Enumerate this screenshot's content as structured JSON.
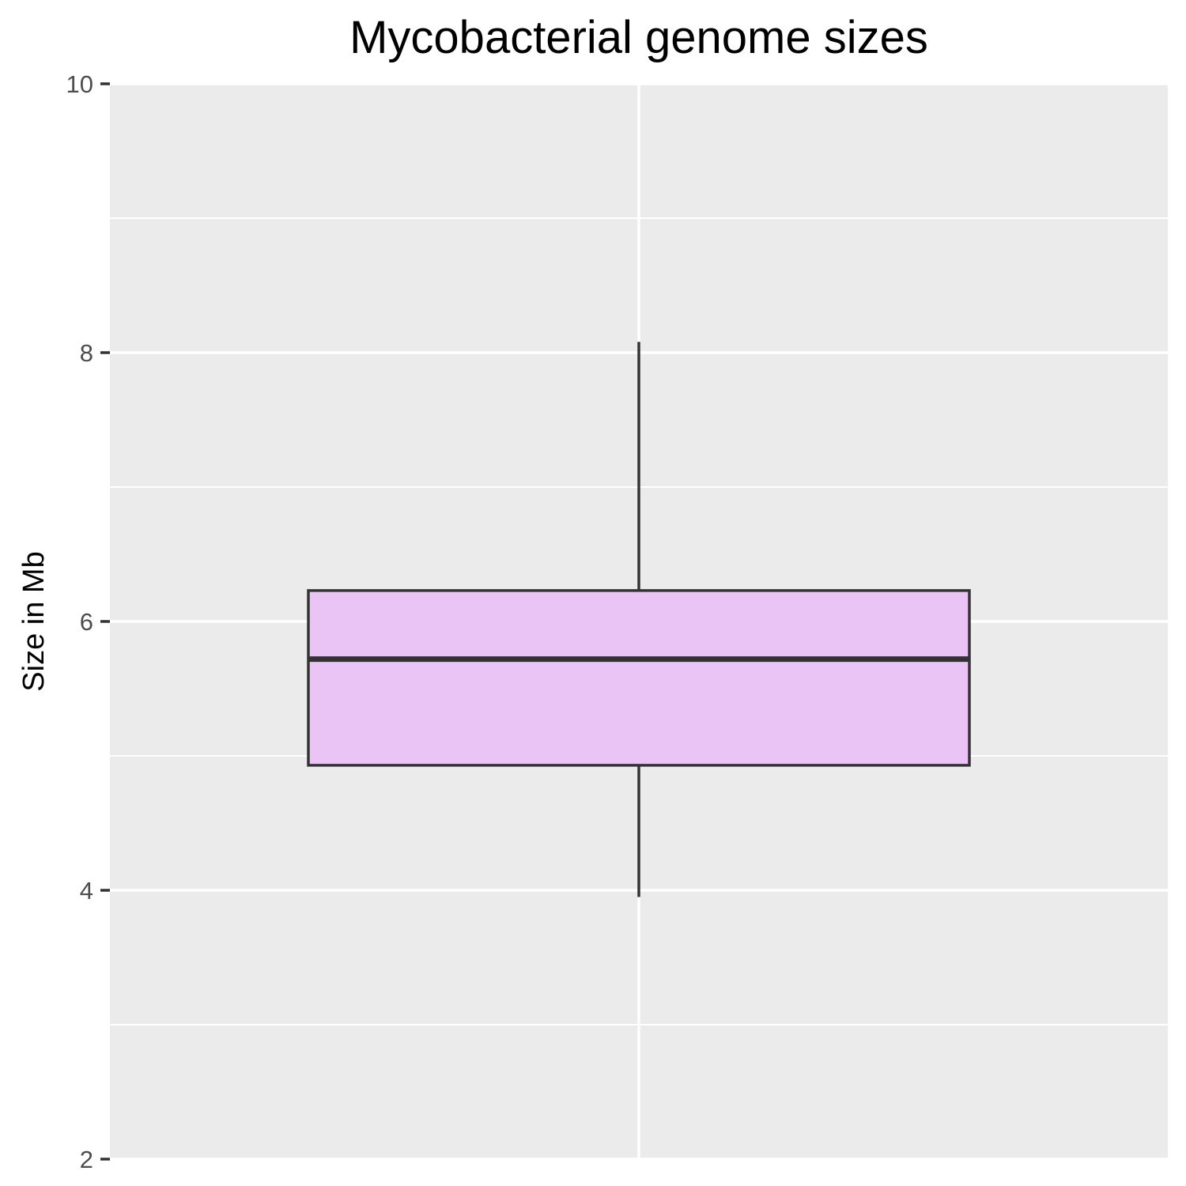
{
  "chart_data": {
    "type": "box",
    "title": "Mycobacterial genome sizes",
    "xlabel": "",
    "ylabel": "Size in Mb",
    "ylim": [
      2,
      10
    ],
    "y_ticks": [
      2,
      4,
      6,
      8,
      10
    ],
    "y_tick_labels": [
      "2",
      "4",
      "6",
      "8",
      "10"
    ],
    "y_minor_ticks": [
      3,
      5,
      7,
      9
    ],
    "grid": true,
    "legend": "none",
    "box": {
      "whisker_low": 3.95,
      "q1": 4.93,
      "median": 5.72,
      "q3": 6.23,
      "whisker_high": 8.08
    },
    "colors": {
      "panel_background": "#ebebeb",
      "grid": "#ffffff",
      "box_fill": "#eac4f4",
      "box_line": "#333333",
      "tick_label": "#4d4d4d"
    }
  }
}
